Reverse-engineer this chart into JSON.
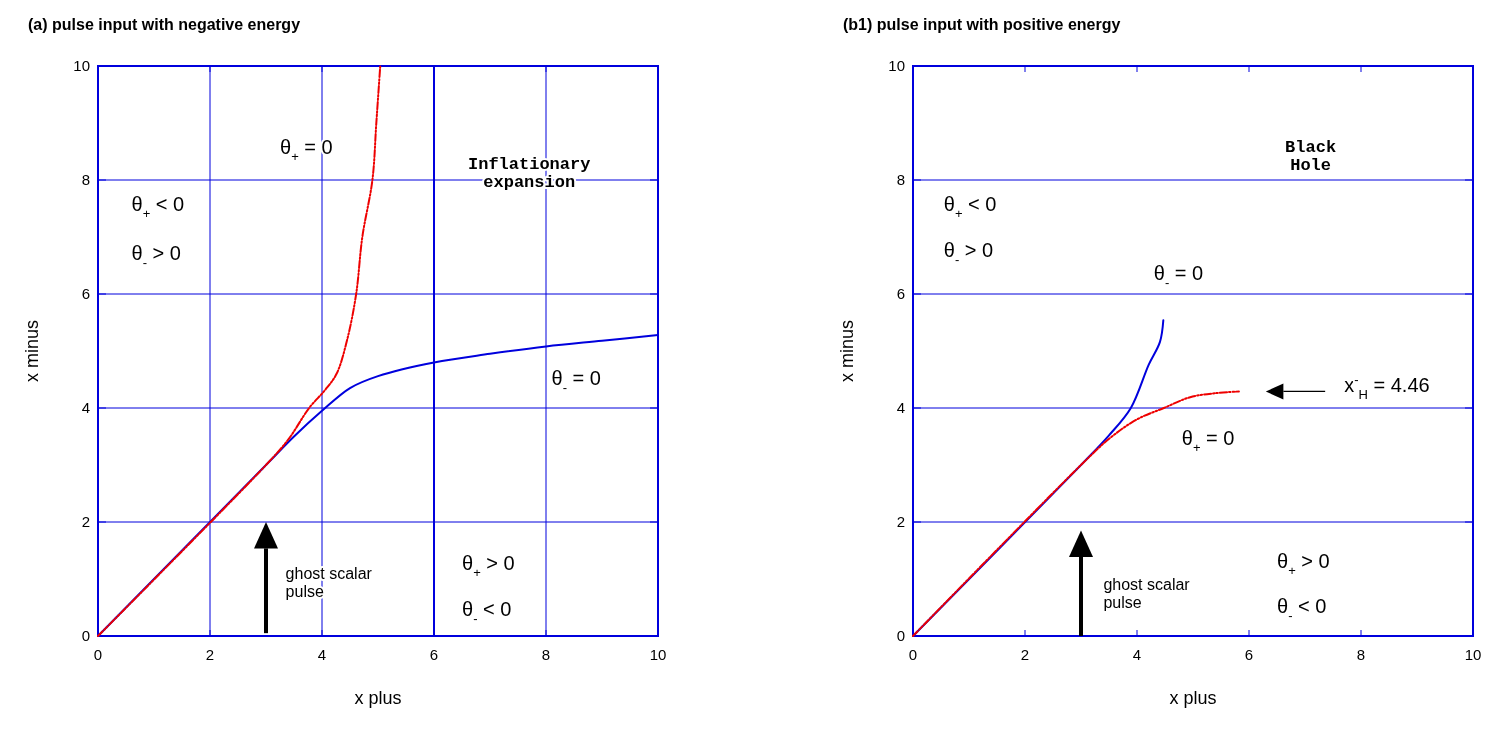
{
  "chart_data": [
    {
      "type": "line",
      "title": "(a) pulse input with negative energy",
      "xlabel": "x plus",
      "ylabel": "x minus",
      "xlim": [
        0,
        10
      ],
      "ylim": [
        0,
        10
      ],
      "xticks": [
        0,
        2,
        4,
        6,
        8,
        10
      ],
      "yticks": [
        0,
        2,
        4,
        6,
        8,
        10
      ],
      "grid": true,
      "series": [
        {
          "color": "#0000dd",
          "line_style": "solid",
          "x": [
            0,
            3,
            3.5,
            4,
            4.5,
            5,
            6,
            7,
            8,
            9,
            10
          ],
          "values": [
            0,
            3,
            3.5,
            3.95,
            4.35,
            4.56,
            4.8,
            4.95,
            5.08,
            5.18,
            5.28
          ]
        },
        {
          "color": "#ee0000",
          "line_style": "dashed",
          "x": [
            0,
            3,
            3.4,
            3.77,
            4.05,
            4.26,
            4.45,
            4.61,
            4.72,
            4.9,
            4.97,
            5.04
          ],
          "values": [
            0,
            3,
            3.45,
            4,
            4.31,
            4.6,
            5.2,
            6,
            7,
            8,
            9,
            10
          ]
        }
      ],
      "ref_lines": [
        {
          "axis": "x",
          "value": 6,
          "color": "#0000dd"
        }
      ],
      "annotations": [
        "θ$_{+}$ = 0",
        "θ$_{+}$ < 0",
        "θ$_{-}$ > 0",
        "Inflationary\nexpansion",
        "θ$_{-}$ = 0",
        "θ$_{+}$ > 0",
        "θ$_{-}$ < 0",
        "ghost scalar\npulse"
      ]
    },
    {
      "type": "line",
      "title": "(b1) pulse input with positive energy",
      "xlabel": "x plus",
      "ylabel": "x minus",
      "xlim": [
        0,
        10
      ],
      "ylim": [
        0,
        10
      ],
      "xticks": [
        0,
        2,
        4,
        6,
        8,
        10
      ],
      "yticks": [
        0,
        2,
        4,
        6,
        8,
        10
      ],
      "grid": "y",
      "series": [
        {
          "color": "#0000dd",
          "line_style": "solid",
          "x": [
            0,
            3,
            3.5,
            3.89,
            4.21,
            4.41,
            4.47
          ],
          "values": [
            0,
            3,
            3.52,
            4,
            4.76,
            5.16,
            5.54
          ]
        },
        {
          "color": "#ee0000",
          "line_style": "dashed",
          "x": [
            0,
            3,
            3.54,
            4,
            4.48,
            4.95,
            5.4,
            5.82
          ],
          "values": [
            0,
            3,
            3.49,
            3.8,
            4,
            4.19,
            4.26,
            4.29
          ]
        }
      ],
      "annotations": [
        "θ$_{+}$ < 0",
        "θ$_{-}$ > 0",
        "Black\nHole",
        "θ$_{-}$ = 0",
        "x$^{-}$$_{H}$ = 4.46",
        "θ$_{+}$ = 0",
        "θ$_{+}$ > 0",
        "θ$_{-}$ < 0",
        "ghost scalar\npulse"
      ]
    }
  ]
}
